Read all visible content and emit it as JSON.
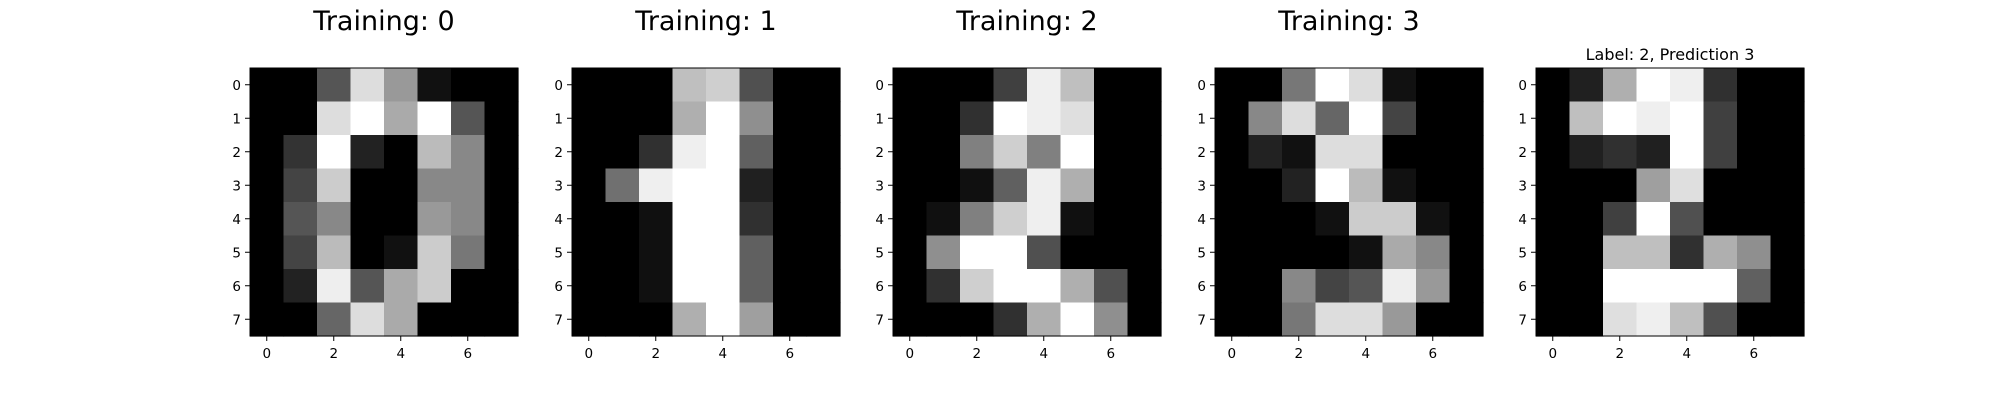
{
  "chart_data": [
    {
      "type": "heatmap",
      "title": "Training: 0",
      "colormap": "gray",
      "xticks": [
        0,
        2,
        4,
        6
      ],
      "yticks": [
        0,
        1,
        2,
        3,
        4,
        5,
        6,
        7
      ],
      "xlim": [
        -0.5,
        7.5
      ],
      "ylim": [
        7.5,
        -0.5
      ],
      "values": [
        [
          0,
          0,
          5,
          13,
          9,
          1,
          0,
          0
        ],
        [
          0,
          0,
          13,
          15,
          10,
          15,
          5,
          0
        ],
        [
          0,
          3,
          15,
          2,
          0,
          11,
          8,
          0
        ],
        [
          0,
          4,
          12,
          0,
          0,
          8,
          8,
          0
        ],
        [
          0,
          5,
          8,
          0,
          0,
          9,
          8,
          0
        ],
        [
          0,
          4,
          11,
          0,
          1,
          12,
          7,
          0
        ],
        [
          0,
          2,
          14,
          5,
          10,
          12,
          0,
          0
        ],
        [
          0,
          0,
          6,
          13,
          10,
          0,
          0,
          0
        ]
      ]
    },
    {
      "type": "heatmap",
      "title": "Training: 1",
      "colormap": "gray",
      "xticks": [
        0,
        2,
        4,
        6
      ],
      "yticks": [
        0,
        1,
        2,
        3,
        4,
        5,
        6,
        7
      ],
      "xlim": [
        -0.5,
        7.5
      ],
      "ylim": [
        7.5,
        -0.5
      ],
      "values": [
        [
          0,
          0,
          0,
          12,
          13,
          5,
          0,
          0
        ],
        [
          0,
          0,
          0,
          11,
          16,
          9,
          0,
          0
        ],
        [
          0,
          0,
          3,
          15,
          16,
          6,
          0,
          0
        ],
        [
          0,
          7,
          15,
          16,
          16,
          2,
          0,
          0
        ],
        [
          0,
          0,
          1,
          16,
          16,
          3,
          0,
          0
        ],
        [
          0,
          0,
          1,
          16,
          16,
          6,
          0,
          0
        ],
        [
          0,
          0,
          1,
          16,
          16,
          6,
          0,
          0
        ],
        [
          0,
          0,
          0,
          11,
          16,
          10,
          0,
          0
        ]
      ]
    },
    {
      "type": "heatmap",
      "title": "Training: 2",
      "colormap": "gray",
      "xticks": [
        0,
        2,
        4,
        6
      ],
      "yticks": [
        0,
        1,
        2,
        3,
        4,
        5,
        6,
        7
      ],
      "xlim": [
        -0.5,
        7.5
      ],
      "ylim": [
        7.5,
        -0.5
      ],
      "values": [
        [
          0,
          0,
          0,
          4,
          15,
          12,
          0,
          0
        ],
        [
          0,
          0,
          3,
          16,
          15,
          14,
          0,
          0
        ],
        [
          0,
          0,
          8,
          13,
          8,
          16,
          0,
          0
        ],
        [
          0,
          0,
          1,
          6,
          15,
          11,
          0,
          0
        ],
        [
          0,
          1,
          8,
          13,
          15,
          1,
          0,
          0
        ],
        [
          0,
          9,
          16,
          16,
          5,
          0,
          0,
          0
        ],
        [
          0,
          3,
          13,
          16,
          16,
          11,
          5,
          0
        ],
        [
          0,
          0,
          0,
          3,
          11,
          16,
          9,
          0
        ]
      ]
    },
    {
      "type": "heatmap",
      "title": "Training: 3",
      "colormap": "gray",
      "xticks": [
        0,
        2,
        4,
        6
      ],
      "yticks": [
        0,
        1,
        2,
        3,
        4,
        5,
        6,
        7
      ],
      "xlim": [
        -0.5,
        7.5
      ],
      "ylim": [
        7.5,
        -0.5
      ],
      "values": [
        [
          0,
          0,
          7,
          15,
          13,
          1,
          0,
          0
        ],
        [
          0,
          8,
          13,
          6,
          15,
          4,
          0,
          0
        ],
        [
          0,
          2,
          1,
          13,
          13,
          0,
          0,
          0
        ],
        [
          0,
          0,
          2,
          15,
          11,
          1,
          0,
          0
        ],
        [
          0,
          0,
          0,
          1,
          12,
          12,
          1,
          0
        ],
        [
          0,
          0,
          0,
          0,
          1,
          10,
          8,
          0
        ],
        [
          0,
          0,
          8,
          4,
          5,
          14,
          9,
          0
        ],
        [
          0,
          0,
          7,
          13,
          13,
          9,
          0,
          0
        ]
      ]
    },
    {
      "type": "heatmap",
      "title": "Label: 2, Prediction 3",
      "colormap": "gray",
      "xticks": [
        0,
        2,
        4,
        6
      ],
      "yticks": [
        0,
        1,
        2,
        3,
        4,
        5,
        6,
        7
      ],
      "xlim": [
        -0.5,
        7.5
      ],
      "ylim": [
        7.5,
        -0.5
      ],
      "values": [
        [
          0,
          2,
          11,
          16,
          15,
          3,
          0,
          0
        ],
        [
          0,
          12,
          16,
          15,
          16,
          4,
          0,
          0
        ],
        [
          0,
          2,
          3,
          2,
          16,
          4,
          0,
          0
        ],
        [
          0,
          0,
          0,
          10,
          14,
          0,
          0,
          0
        ],
        [
          0,
          0,
          4,
          16,
          5,
          0,
          0,
          0
        ],
        [
          0,
          0,
          12,
          12,
          3,
          11,
          9,
          0
        ],
        [
          0,
          0,
          16,
          16,
          16,
          16,
          6,
          0
        ],
        [
          0,
          0,
          14,
          15,
          12,
          5,
          0,
          0
        ]
      ]
    }
  ]
}
